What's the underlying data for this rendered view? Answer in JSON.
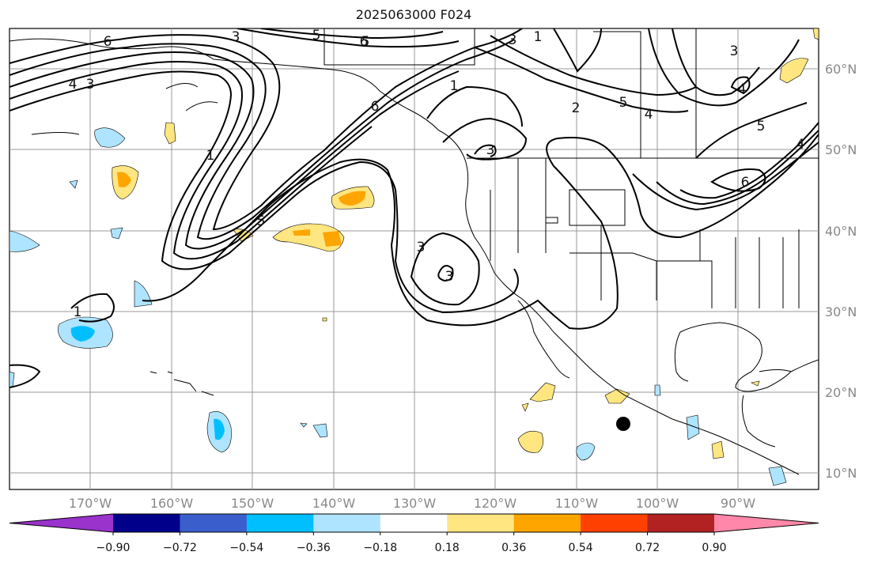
{
  "title": "2025063000 F024",
  "lon_labels": [
    "170°W",
    "160°W",
    "150°W",
    "140°W",
    "130°W",
    "120°W",
    "110°W",
    "100°W",
    "90°W"
  ],
  "lat_labels": [
    "60°N",
    "50°N",
    "40°N",
    "30°N",
    "20°N",
    "10°N"
  ],
  "colorbar": {
    "ticks": [
      "−0.90",
      "−0.72",
      "−0.54",
      "−0.36",
      "−0.18",
      "0.18",
      "0.36",
      "0.54",
      "0.72",
      "0.90"
    ],
    "colors": [
      "#9933cc",
      "#00008b",
      "#3a5fcd",
      "#00bfff",
      "#aee4ff",
      "#ffffff",
      "#ffe680",
      "#ffa500",
      "#ff4000",
      "#b22222",
      "#ff88aa"
    ]
  },
  "contour_labels": [
    "6",
    "3",
    "5",
    "6",
    "1",
    "3",
    "4",
    "3",
    "5",
    "1",
    "2",
    "5",
    "3",
    "4",
    "3",
    "1",
    "3",
    "3",
    "4",
    "1",
    "6",
    "5",
    "6",
    "5",
    "4"
  ]
}
